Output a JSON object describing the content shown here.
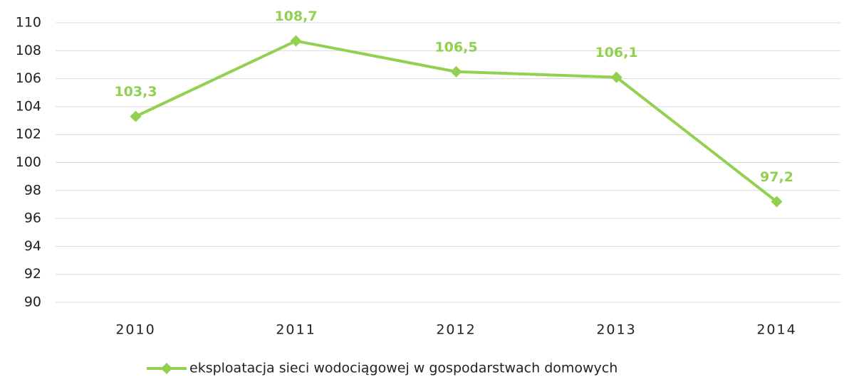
{
  "chart_data": {
    "type": "line",
    "categories": [
      "2010",
      "2011",
      "2012",
      "2013",
      "2014"
    ],
    "series": [
      {
        "name": "eksploatacja sieci wodociągowej w gospodarstwach domowych",
        "color": "#92d050",
        "values": [
          103.3,
          108.7,
          106.5,
          106.1,
          97.2
        ],
        "value_labels": [
          "103,3",
          "108,7",
          "106,5",
          "106,1",
          "97,2"
        ]
      }
    ],
    "ylim": [
      90,
      110
    ],
    "yticks": [
      90,
      92,
      94,
      96,
      98,
      100,
      102,
      104,
      106,
      108,
      110
    ],
    "grid": true,
    "legend": "bottom"
  }
}
